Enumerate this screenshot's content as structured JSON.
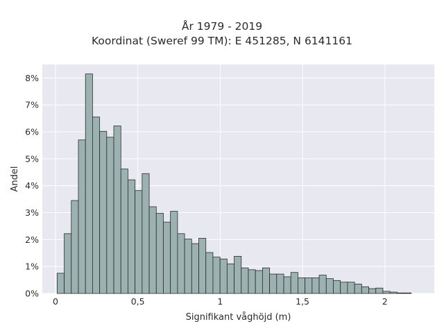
{
  "chart_data": {
    "type": "bar",
    "title": "År 1979 - 2019",
    "subtitle": "Koordinat (Sweref 99 TM): E 451285, N 6141161",
    "xlabel": "Signifikant våghöjd (m)",
    "ylabel": "Andel",
    "xlim": [
      -0.08,
      2.3
    ],
    "ylim": [
      0,
      8.5
    ],
    "grid": true,
    "x_ticks": [
      {
        "value": 0,
        "label": "0"
      },
      {
        "value": 0.5,
        "label": "0,5"
      },
      {
        "value": 1,
        "label": "1"
      },
      {
        "value": 1.5,
        "label": "1,5"
      },
      {
        "value": 2,
        "label": "2"
      }
    ],
    "y_ticks": [
      {
        "value": 0,
        "label": "0%"
      },
      {
        "value": 1,
        "label": "1%"
      },
      {
        "value": 2,
        "label": "2%"
      },
      {
        "value": 3,
        "label": "3%"
      },
      {
        "value": 4,
        "label": "4%"
      },
      {
        "value": 5,
        "label": "5%"
      },
      {
        "value": 6,
        "label": "6%"
      },
      {
        "value": 7,
        "label": "7%"
      },
      {
        "value": 8,
        "label": "8%"
      }
    ],
    "bin_start": 0.01,
    "bin_width": 0.043,
    "values": [
      0.75,
      2.22,
      3.45,
      5.7,
      8.15,
      6.55,
      6.02,
      5.8,
      6.22,
      4.62,
      4.22,
      3.82,
      4.45,
      3.22,
      2.98,
      2.65,
      3.05,
      2.22,
      2.02,
      1.85,
      2.05,
      1.52,
      1.35,
      1.28,
      1.1,
      1.38,
      0.95,
      0.88,
      0.85,
      0.95,
      0.72,
      0.72,
      0.62,
      0.78,
      0.58,
      0.58,
      0.58,
      0.68,
      0.55,
      0.48,
      0.42,
      0.42,
      0.35,
      0.25,
      0.18,
      0.2,
      0.08,
      0.05,
      0.02,
      0.02
    ],
    "bar_color": "#9bb2b0",
    "edge_color": "#2b2b2b",
    "background_color": "#e8e8f0",
    "grid_color": "#ffffff"
  }
}
